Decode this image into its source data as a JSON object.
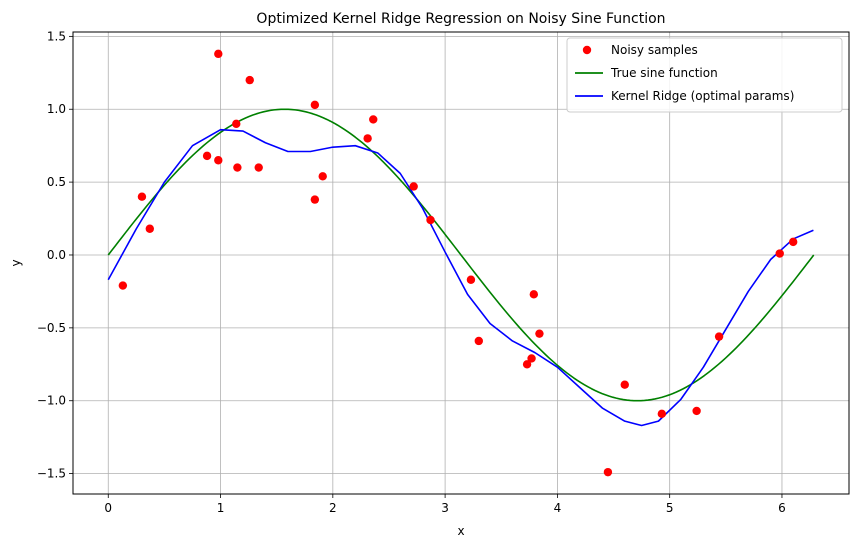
{
  "chart_data": {
    "type": "scatter",
    "title": "Optimized Kernel Ridge Regression on Noisy Sine Function",
    "xlabel": "x",
    "ylabel": "y",
    "xlim": [
      -0.314,
      6.597
    ],
    "ylim": [
      -1.64,
      1.53
    ],
    "xticks": [
      0,
      1,
      2,
      3,
      4,
      5,
      6
    ],
    "yticks": [
      -1.5,
      -1.0,
      -0.5,
      0.0,
      0.5,
      1.0,
      1.5
    ],
    "xtick_labels": [
      "0",
      "1",
      "2",
      "3",
      "4",
      "5",
      "6"
    ],
    "ytick_labels": [
      "−1.5",
      "−1.0",
      "−0.5",
      "0.0",
      "0.5",
      "1.0",
      "1.5"
    ],
    "grid": true,
    "legend_position": "top-right",
    "series": [
      {
        "name": "Noisy samples",
        "kind": "scatter",
        "color": "#ff0000",
        "points": [
          [
            0.13,
            -0.21
          ],
          [
            0.3,
            0.4
          ],
          [
            0.37,
            0.18
          ],
          [
            0.88,
            0.68
          ],
          [
            0.98,
            0.65
          ],
          [
            0.98,
            1.38
          ],
          [
            1.14,
            0.9
          ],
          [
            1.15,
            0.6
          ],
          [
            1.26,
            1.2
          ],
          [
            1.34,
            0.6
          ],
          [
            1.84,
            1.03
          ],
          [
            1.84,
            0.38
          ],
          [
            1.91,
            0.54
          ],
          [
            2.31,
            0.8
          ],
          [
            2.36,
            0.93
          ],
          [
            2.72,
            0.47
          ],
          [
            2.87,
            0.24
          ],
          [
            3.23,
            -0.17
          ],
          [
            3.3,
            -0.59
          ],
          [
            3.73,
            -0.75
          ],
          [
            3.77,
            -0.71
          ],
          [
            3.79,
            -0.27
          ],
          [
            3.84,
            -0.54
          ],
          [
            4.45,
            -1.49
          ],
          [
            4.6,
            -0.89
          ],
          [
            4.93,
            -1.09
          ],
          [
            5.24,
            -1.07
          ],
          [
            5.44,
            -0.56
          ],
          [
            5.98,
            0.01
          ],
          [
            6.1,
            0.09
          ]
        ]
      },
      {
        "name": "True sine function",
        "kind": "line",
        "color": "#008000",
        "function": "sin(x)",
        "x_range": [
          0,
          6.283
        ]
      },
      {
        "name": "Kernel Ridge (optimal params)",
        "kind": "line",
        "color": "#0000ff",
        "points": [
          [
            0.0,
            -0.17
          ],
          [
            0.25,
            0.18
          ],
          [
            0.5,
            0.5
          ],
          [
            0.75,
            0.75
          ],
          [
            1.0,
            0.86
          ],
          [
            1.2,
            0.85
          ],
          [
            1.4,
            0.77
          ],
          [
            1.6,
            0.71
          ],
          [
            1.8,
            0.71
          ],
          [
            2.0,
            0.74
          ],
          [
            2.2,
            0.75
          ],
          [
            2.4,
            0.7
          ],
          [
            2.6,
            0.56
          ],
          [
            2.8,
            0.32
          ],
          [
            3.0,
            0.02
          ],
          [
            3.2,
            -0.27
          ],
          [
            3.4,
            -0.47
          ],
          [
            3.6,
            -0.59
          ],
          [
            3.8,
            -0.67
          ],
          [
            4.0,
            -0.77
          ],
          [
            4.2,
            -0.91
          ],
          [
            4.4,
            -1.05
          ],
          [
            4.6,
            -1.14
          ],
          [
            4.75,
            -1.17
          ],
          [
            4.9,
            -1.14
          ],
          [
            5.1,
            -0.99
          ],
          [
            5.3,
            -0.77
          ],
          [
            5.5,
            -0.51
          ],
          [
            5.7,
            -0.25
          ],
          [
            5.9,
            -0.03
          ],
          [
            6.1,
            0.11
          ],
          [
            6.28,
            0.17
          ]
        ]
      }
    ]
  }
}
